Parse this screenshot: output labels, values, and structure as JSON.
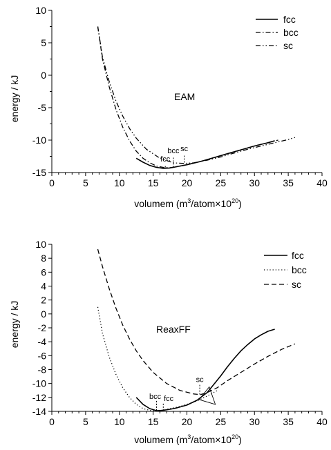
{
  "chart_data": [
    {
      "type": "line",
      "title": "",
      "panel_label": "EAM",
      "xlabel": "volumem (m",
      "xlabel_sup1": "3",
      "xlabel_mid": "/atom",
      "xlabel_times": "×",
      "xlabel_num": "10",
      "xlabel_sup2": "20",
      "xlabel_end": ")",
      "ylabel": "energy / kJ",
      "xlim": [
        0,
        40
      ],
      "ylim": [
        -15,
        10
      ],
      "xticks": [
        0,
        5,
        10,
        15,
        20,
        25,
        30,
        35,
        40
      ],
      "yticks": [
        -15,
        -10,
        -5,
        0,
        5,
        10
      ],
      "grid": false,
      "legend_position": "top-right",
      "series": [
        {
          "name": "fcc",
          "style": "solid",
          "x": [
            12.5,
            13.5,
            14.5,
            15.5,
            16.5,
            17.5,
            18.5,
            20,
            22,
            24,
            26,
            28,
            30,
            32,
            33
          ],
          "y": [
            -12.8,
            -13.4,
            -13.9,
            -14.2,
            -14.35,
            -14.3,
            -14.1,
            -13.8,
            -13.3,
            -12.7,
            -12.1,
            -11.5,
            -10.9,
            -10.4,
            -10.1
          ]
        },
        {
          "name": "bcc",
          "style": "dashdot",
          "x": [
            6.8,
            7.5,
            8.5,
            9.5,
            10.5,
            11.5,
            12.5,
            13.5,
            14.5,
            15.5,
            16.5,
            17.5,
            18.5,
            20,
            22,
            24,
            26,
            28,
            30,
            32,
            33.5
          ],
          "y": [
            7.5,
            2.5,
            -1.8,
            -5.3,
            -8.0,
            -10.1,
            -11.7,
            -12.8,
            -13.5,
            -14.0,
            -14.2,
            -14.25,
            -14.1,
            -13.8,
            -13.3,
            -12.7,
            -12.1,
            -11.5,
            -10.9,
            -10.4,
            -10.0
          ]
        },
        {
          "name": "sc",
          "style": "dashdotdot",
          "x": [
            6.8,
            7.5,
            8.5,
            9.5,
            10.5,
            11.5,
            12.5,
            14,
            16,
            18,
            19.5,
            21,
            23,
            25,
            27,
            29,
            31,
            33,
            35,
            36
          ],
          "y": [
            7.5,
            2.8,
            -1.0,
            -4.0,
            -6.3,
            -8.2,
            -9.7,
            -11.4,
            -12.8,
            -13.5,
            -13.6,
            -13.5,
            -13.1,
            -12.6,
            -12.0,
            -11.4,
            -10.9,
            -10.4,
            -9.9,
            -9.6
          ]
        }
      ],
      "annotations": [
        {
          "text": "fcc",
          "x": 16.8,
          "y": -13.3
        },
        {
          "text": "bcc",
          "x": 18.0,
          "y": -12.0
        },
        {
          "text": "sc",
          "x": 19.6,
          "y": -11.7
        }
      ],
      "minimum_markers": [
        {
          "x": 16.8,
          "y_top": -14.0,
          "y_bot": -14.35
        },
        {
          "x": 18.0,
          "y_top": -12.7,
          "y_bot": -14.2
        },
        {
          "x": 19.6,
          "y_top": -12.4,
          "y_bot": -13.6
        }
      ]
    },
    {
      "type": "line",
      "title": "",
      "panel_label": "ReaxFF",
      "xlabel": "volumem (m",
      "xlabel_sup1": "3",
      "xlabel_mid": "/atom",
      "xlabel_times": "×",
      "xlabel_num": "10",
      "xlabel_sup2": "20",
      "xlabel_end": ")",
      "ylabel": "energy / kJ",
      "xlim": [
        0,
        40
      ],
      "ylim": [
        -14,
        10
      ],
      "xticks": [
        0,
        5,
        10,
        15,
        20,
        25,
        30,
        35,
        40
      ],
      "yticks": [
        -14,
        -12,
        -10,
        -8,
        -6,
        -4,
        -2,
        0,
        2,
        4,
        6,
        8,
        10
      ],
      "grid": false,
      "legend_position": "top-right",
      "series": [
        {
          "name": "fcc",
          "style": "solid",
          "x": [
            12.5,
            13.5,
            14.5,
            15.5,
            16.5,
            17.5,
            18.5,
            20,
            21.5,
            23,
            24,
            25,
            26,
            27,
            28,
            29,
            30,
            31,
            32,
            33
          ],
          "y": [
            -12.0,
            -13.0,
            -13.6,
            -13.9,
            -13.85,
            -13.7,
            -13.5,
            -13.1,
            -12.4,
            -11.3,
            -10.1,
            -8.9,
            -7.6,
            -6.4,
            -5.3,
            -4.4,
            -3.6,
            -3.0,
            -2.5,
            -2.2
          ]
        },
        {
          "name": "bcc",
          "style": "dotted",
          "x": [
            6.8,
            7.5,
            8.5,
            9.5,
            10.5,
            11.5,
            12.5,
            13.5,
            14.5,
            15.5,
            16.5,
            17.5,
            18.5,
            20,
            21.5,
            23,
            24.5
          ],
          "y": [
            1.0,
            -2.8,
            -6.2,
            -8.7,
            -10.6,
            -12.0,
            -13.0,
            -13.6,
            -13.85,
            -13.9,
            -13.8,
            -13.6,
            -13.4,
            -13.0,
            -12.5,
            -11.8,
            -11.0
          ]
        },
        {
          "name": "sc",
          "style": "dashed",
          "x": [
            6.8,
            7.5,
            8.5,
            9.5,
            10.5,
            11.5,
            12.5,
            13.5,
            15,
            17,
            19,
            21,
            22,
            23,
            24.5,
            26,
            28,
            30,
            32,
            34,
            36
          ],
          "y": [
            9.3,
            6.8,
            3.6,
            0.8,
            -1.6,
            -3.6,
            -5.3,
            -6.7,
            -8.4,
            -10.0,
            -11.0,
            -11.5,
            -11.6,
            -11.3,
            -10.6,
            -9.6,
            -8.4,
            -7.2,
            -6.1,
            -5.1,
            -4.3
          ]
        }
      ],
      "annotations": [
        {
          "text": "bcc",
          "x": 15.3,
          "y": -12.2
        },
        {
          "text": "fcc",
          "x": 17.3,
          "y": -12.5
        },
        {
          "text": "sc",
          "x": 21.9,
          "y": -9.8
        }
      ],
      "minimum_markers": [
        {
          "x": 15.5,
          "y_top": -12.5,
          "y_bot": -13.9
        },
        {
          "x": 16.5,
          "y_top": -12.9,
          "y_bot": -13.85
        },
        {
          "x": 21.9,
          "y_top": -10.2,
          "y_bot": -11.6
        }
      ],
      "extra_marks": [
        {
          "kind": "triangle",
          "x": [
            21.8,
            23.3,
            24.2,
            21.8
          ],
          "y": [
            -12.3,
            -10.5,
            -13.0,
            -12.3
          ]
        }
      ]
    }
  ]
}
